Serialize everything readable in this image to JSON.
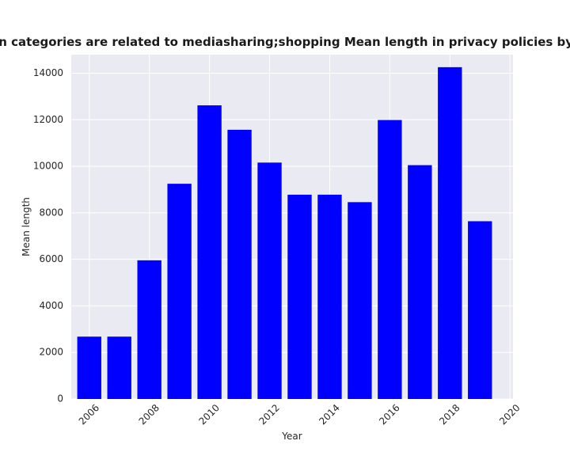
{
  "chart_data": {
    "type": "bar",
    "title": "when categories are related to mediasharing;shopping Mean length in privacy policies by Year",
    "xlabel": "Year",
    "ylabel": "Mean length",
    "x": [
      2006,
      2007,
      2008,
      2009,
      2010,
      2011,
      2012,
      2013,
      2014,
      2015,
      2016,
      2017,
      2018,
      2019
    ],
    "values": [
      2680,
      2680,
      5960,
      9250,
      12620,
      11570,
      10160,
      8780,
      8780,
      8460,
      11990,
      10050,
      14260,
      7640
    ],
    "xlim": [
      2005.4,
      2020.1
    ],
    "ylim": [
      0,
      14800
    ],
    "x_ticks": [
      2006,
      2008,
      2010,
      2012,
      2014,
      2016,
      2018,
      2020
    ],
    "y_ticks": [
      0,
      2000,
      4000,
      6000,
      8000,
      10000,
      12000,
      14000
    ],
    "grid": true,
    "colors": {
      "bar": "#0000ff",
      "plot_background": "#eaeaf2",
      "grid": "#ffffff"
    }
  }
}
